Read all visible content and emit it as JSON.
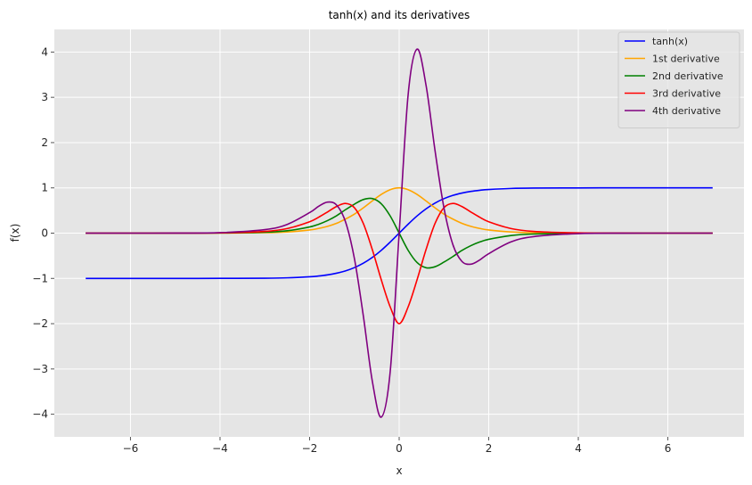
{
  "chart_data": {
    "type": "line",
    "title": "tanh(x) and its derivatives",
    "xlabel": "x",
    "ylabel": "f(x)",
    "xlim": [
      -7.7,
      7.7
    ],
    "ylim": [
      -4.5,
      4.5
    ],
    "xticks": [
      -6,
      -4,
      -2,
      0,
      2,
      4,
      6
    ],
    "xtick_labels": [
      "−6",
      "−4",
      "−2",
      "0",
      "2",
      "4",
      "6"
    ],
    "yticks": [
      -4,
      -3,
      -2,
      -1,
      0,
      1,
      2,
      3,
      4
    ],
    "ytick_labels": [
      "−4",
      "−3",
      "−2",
      "−1",
      "0",
      "1",
      "2",
      "3",
      "4"
    ],
    "grid": true,
    "legend_position": "top-right",
    "x": [
      -7.0,
      -6.0,
      -5.0,
      -4.0,
      -3.0,
      -2.5,
      -2.0,
      -1.8,
      -1.6,
      -1.4,
      -1.2,
      -1.0,
      -0.8,
      -0.6,
      -0.4,
      -0.2,
      0.0,
      0.2,
      0.4,
      0.6,
      0.8,
      1.0,
      1.2,
      1.4,
      1.6,
      1.8,
      2.0,
      2.5,
      3.0,
      4.0,
      5.0,
      6.0,
      7.0
    ],
    "series": [
      {
        "name": "tanh(x)",
        "color": "#0000ff",
        "values": [
          -1.0,
          -1.0,
          -1.0,
          -0.999,
          -0.995,
          -0.987,
          -0.964,
          -0.947,
          -0.922,
          -0.885,
          -0.834,
          -0.762,
          -0.664,
          -0.537,
          -0.38,
          -0.197,
          0.0,
          0.197,
          0.38,
          0.537,
          0.664,
          0.762,
          0.834,
          0.885,
          0.922,
          0.947,
          0.964,
          0.987,
          0.995,
          0.999,
          1.0,
          1.0,
          1.0
        ]
      },
      {
        "name": "1st derivative",
        "color": "#ffa500",
        "values": [
          0.0,
          0.0,
          0.0002,
          0.0013,
          0.0099,
          0.0266,
          0.0707,
          0.1033,
          0.1501,
          0.2167,
          0.3098,
          0.42,
          0.559,
          0.7115,
          0.8556,
          0.9612,
          1.0,
          0.9612,
          0.8556,
          0.7115,
          0.559,
          0.42,
          0.3098,
          0.2167,
          0.1501,
          0.1033,
          0.0707,
          0.0266,
          0.0099,
          0.0013,
          0.0002,
          0.0,
          0.0
        ]
      },
      {
        "name": "2nd derivative",
        "color": "#008000",
        "values": [
          0.0,
          0.0,
          0.0004,
          0.0027,
          0.0197,
          0.0525,
          0.1362,
          0.1956,
          0.2768,
          0.3835,
          0.5168,
          0.6397,
          0.7424,
          0.7644,
          0.6495,
          0.3787,
          0.0,
          -0.3787,
          -0.6495,
          -0.7644,
          -0.7424,
          -0.6397,
          -0.5168,
          -0.3835,
          -0.2768,
          -0.1956,
          -0.1362,
          -0.0525,
          -0.0197,
          -0.0027,
          -0.0004,
          0.0,
          0.0
        ]
      },
      {
        "name": "3rd derivative",
        "color": "#ff0000",
        "values": [
          0.0,
          0.0,
          0.0007,
          0.0053,
          0.0389,
          0.1013,
          0.2521,
          0.3504,
          0.4675,
          0.5882,
          0.6564,
          0.5631,
          0.2119,
          -0.3625,
          -1.0289,
          -1.6295,
          -2.0,
          -1.6295,
          -1.0289,
          -0.3625,
          0.2119,
          0.5631,
          0.6564,
          0.5882,
          0.4675,
          0.3504,
          0.2521,
          0.1013,
          0.0389,
          0.0053,
          0.0007,
          0.0,
          0.0
        ]
      },
      {
        "name": "4th derivative",
        "color": "#800080",
        "values": [
          0.0,
          0.0,
          0.0014,
          0.0107,
          0.0768,
          0.193,
          0.4531,
          0.5917,
          0.6861,
          0.623,
          0.2548,
          -0.5589,
          -1.8296,
          -3.2662,
          -4.0641,
          -3.0566,
          0.0,
          3.0566,
          4.0641,
          3.2662,
          1.8296,
          0.5589,
          -0.2548,
          -0.623,
          -0.6861,
          -0.5917,
          -0.4531,
          -0.193,
          -0.0768,
          -0.0107,
          -0.0014,
          0.0,
          0.0
        ]
      }
    ]
  }
}
